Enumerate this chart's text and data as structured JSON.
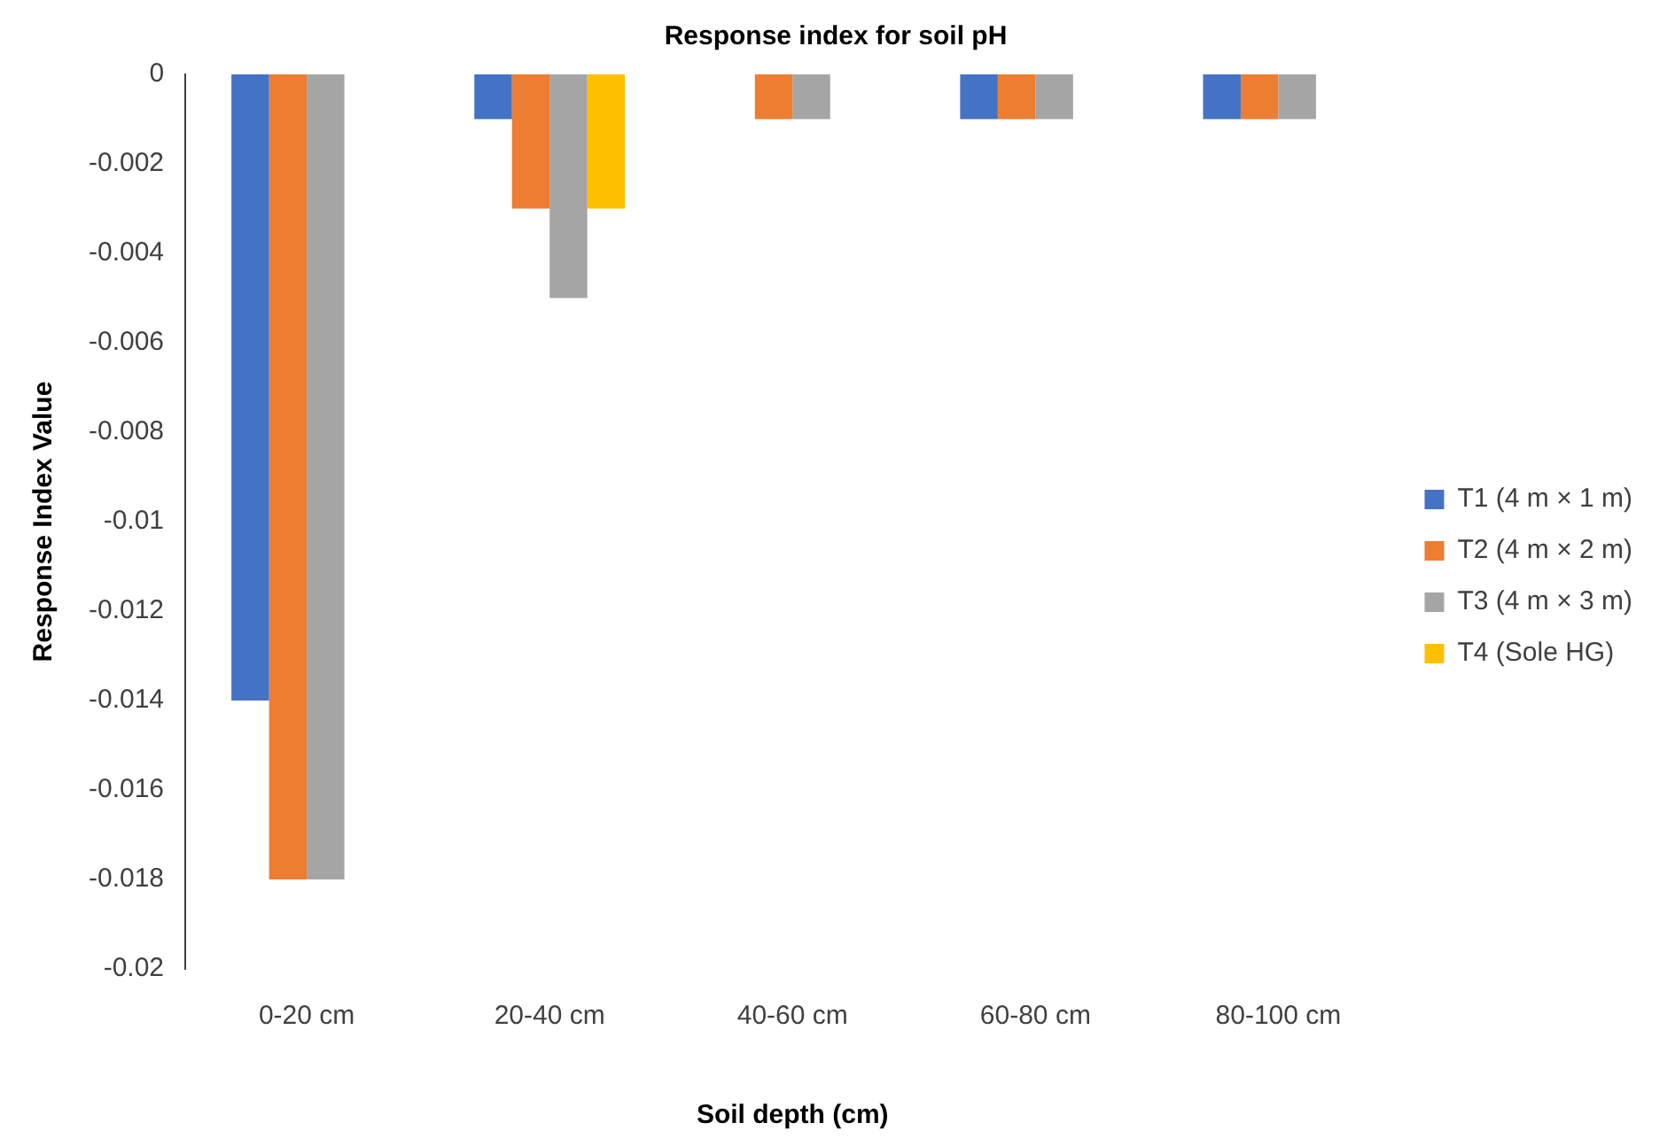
{
  "chart_data": {
    "type": "bar",
    "title": "Response index for soil pH",
    "xlabel": "Soil depth (cm)",
    "ylabel": "Response Index Value",
    "categories": [
      "0-20 cm",
      "20-40 cm",
      "40-60 cm",
      "60-80 cm",
      "80-100 cm"
    ],
    "series": [
      {
        "name": "T1 (4 m × 1 m)",
        "color": "#4472c4",
        "values": [
          -0.014,
          -0.001,
          0,
          -0.001,
          -0.001
        ]
      },
      {
        "name": "T2 (4 m × 2 m)",
        "color": "#ed7d31",
        "values": [
          -0.018,
          -0.003,
          -0.001,
          -0.001,
          -0.001
        ]
      },
      {
        "name": "T3 (4 m × 3 m)",
        "color": "#a5a5a5",
        "values": [
          -0.018,
          -0.005,
          -0.001,
          -0.001,
          -0.001
        ]
      },
      {
        "name": "T4 (Sole HG)",
        "color": "#ffc000",
        "values": [
          0,
          -0.003,
          0,
          0,
          0
        ]
      }
    ],
    "ylim": [
      -0.02,
      0
    ],
    "yticks": [
      0,
      -0.002,
      -0.004,
      -0.006,
      -0.008,
      -0.01,
      -0.012,
      -0.014,
      -0.016,
      -0.018,
      -0.02
    ],
    "grid": false,
    "legend": "right"
  }
}
